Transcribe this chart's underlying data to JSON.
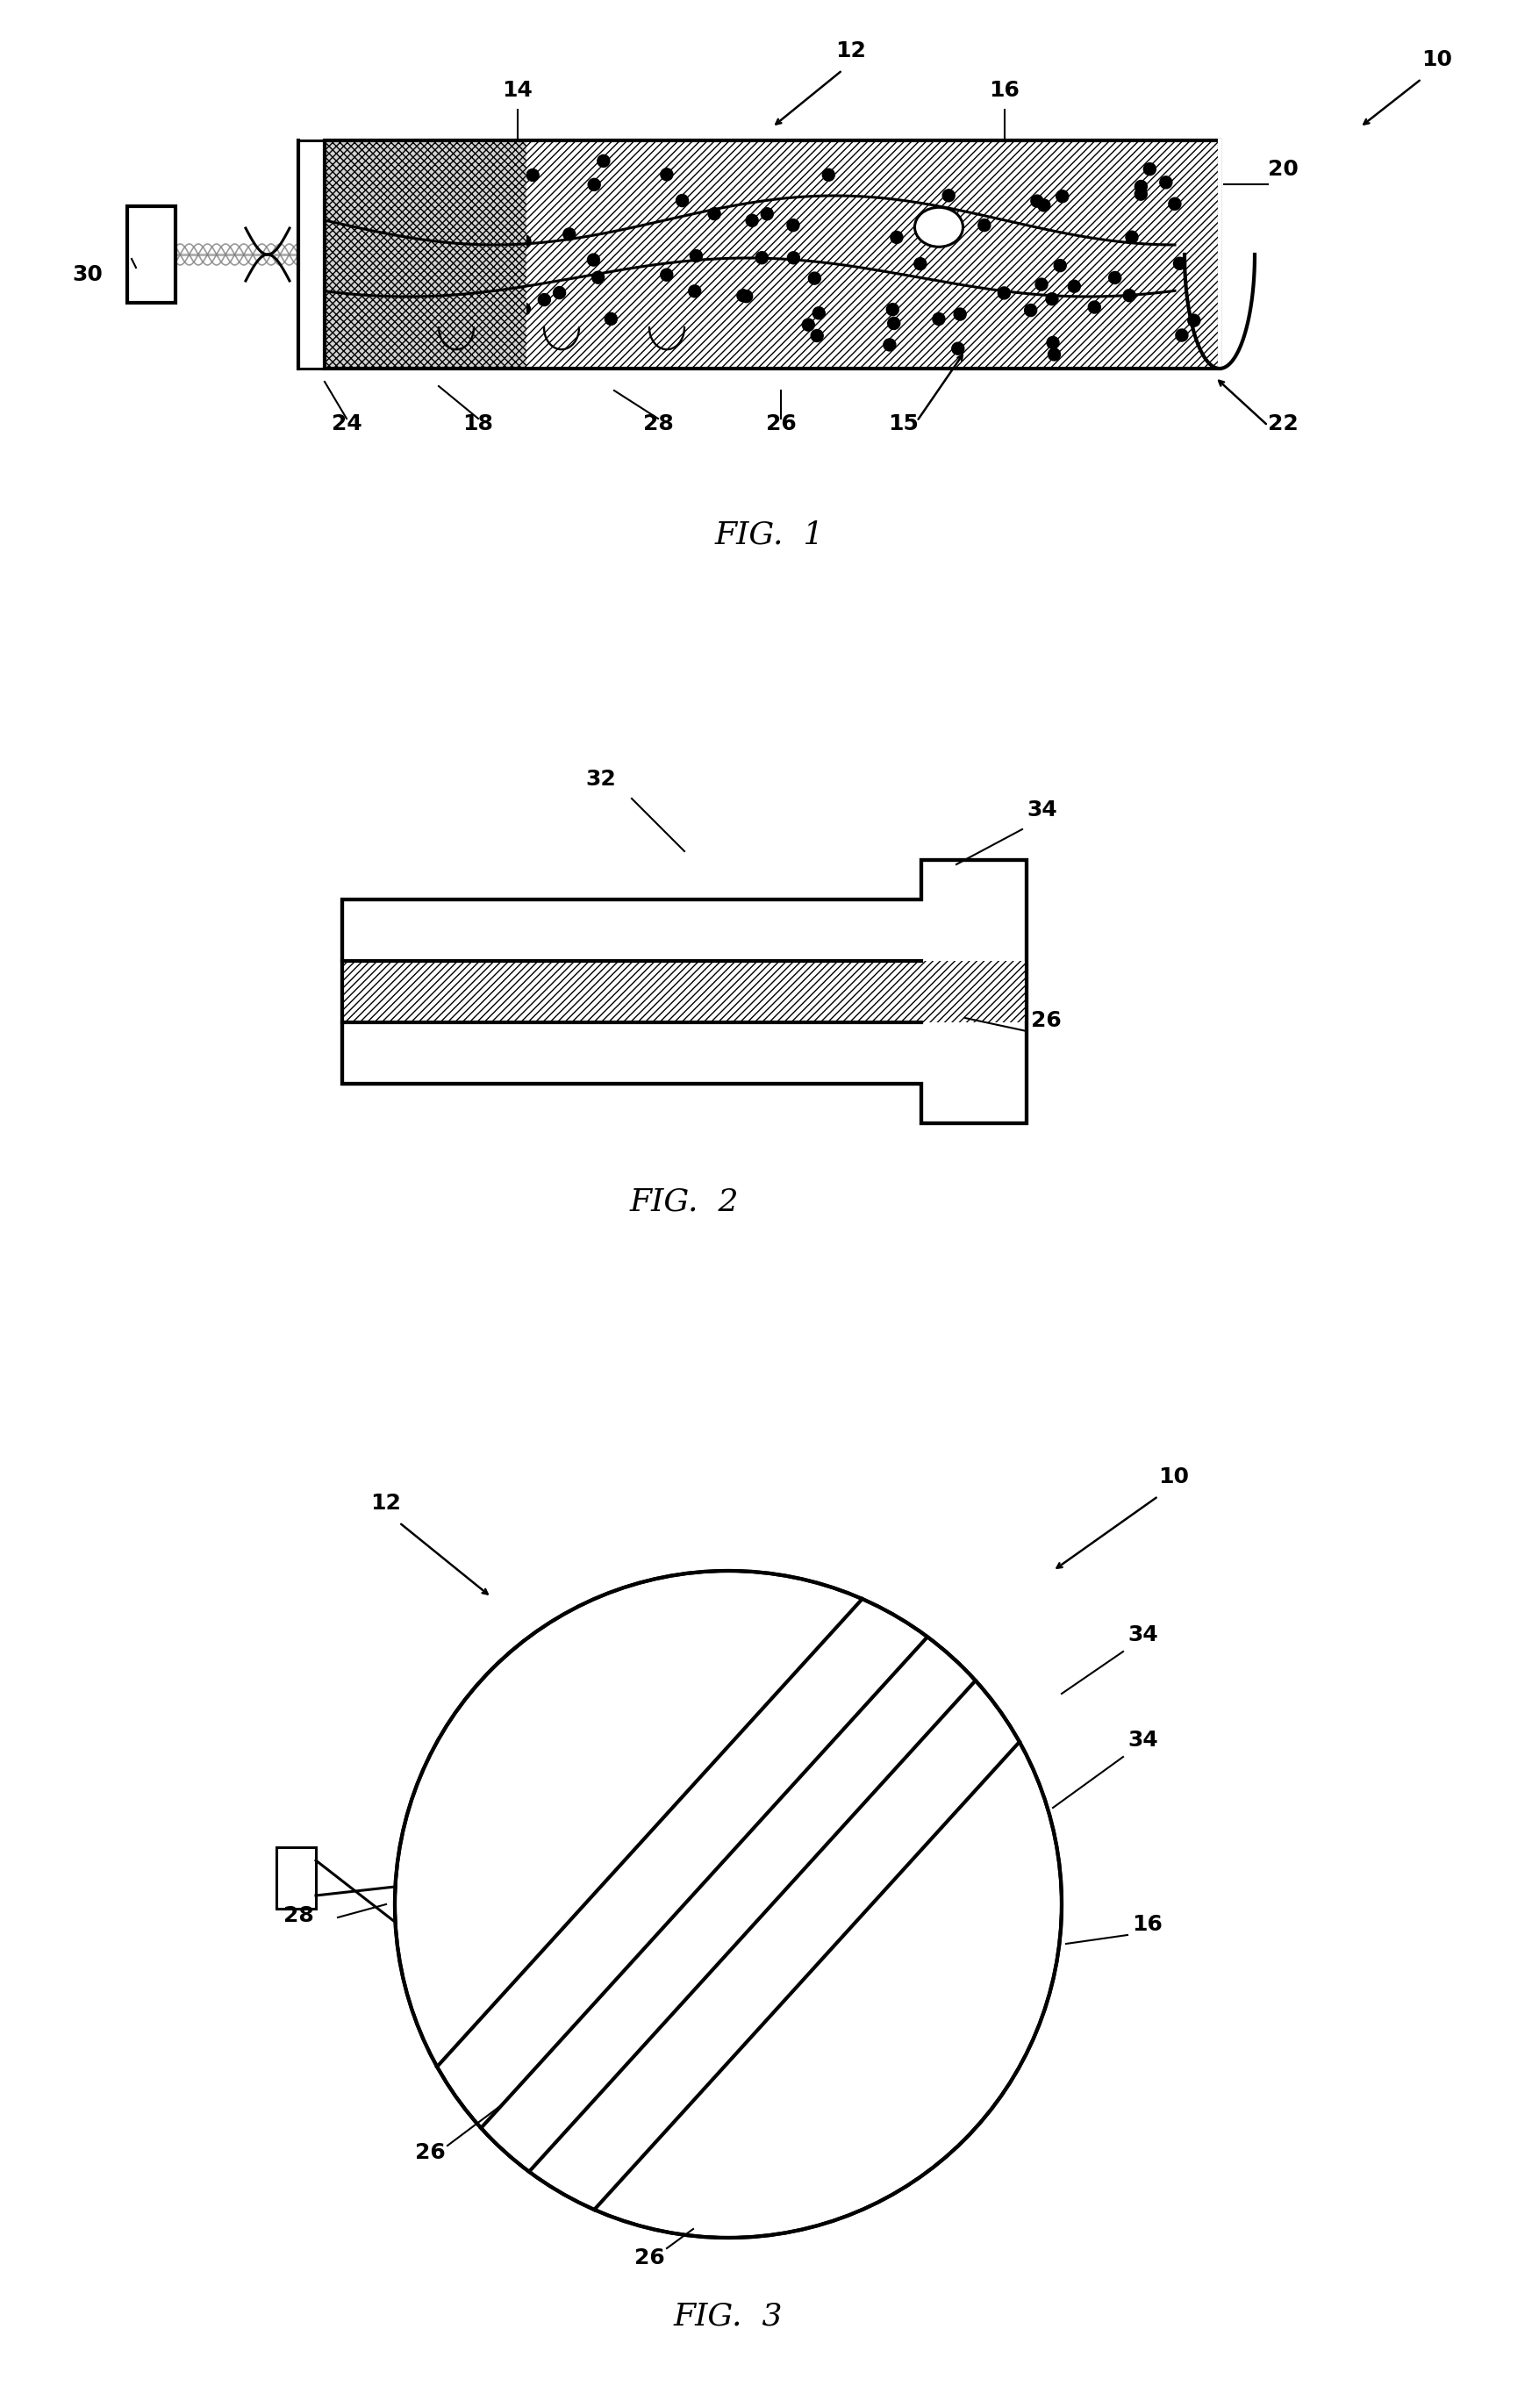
{
  "fig_title_1": "FIG.  1",
  "fig_title_2": "FIG.  2",
  "fig_title_3": "FIG.  3",
  "bg_color": "#ffffff",
  "line_color": "#000000",
  "label_fontsize": 18,
  "fig_label_fontsize": 26
}
